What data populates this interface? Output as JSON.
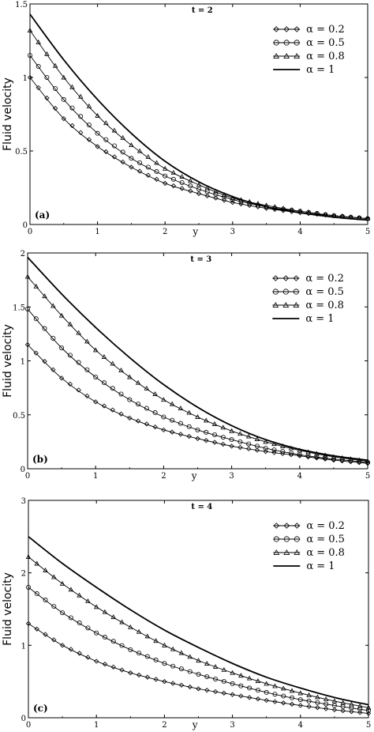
{
  "chart_data": [
    {
      "type": "line",
      "title": "t = 2",
      "panel_label": "(a)",
      "xlabel": "y",
      "ylabel": "Fluid velocity",
      "xlim": [
        0,
        5
      ],
      "ylim": [
        0,
        1.5
      ],
      "xticks": [
        "0",
        "1",
        "2",
        "3",
        "4",
        "5"
      ],
      "yticks": [
        "0",
        "0.5",
        "1",
        "1.5"
      ],
      "grid": false,
      "legend": "top-right",
      "series": [
        {
          "name": "α = 0.2",
          "marker": "diamond",
          "x": [
            0,
            0.5,
            1,
            1.5,
            2,
            2.5,
            3,
            3.5,
            4,
            4.5,
            5
          ],
          "values": [
            1.0,
            0.72,
            0.53,
            0.39,
            0.28,
            0.21,
            0.15,
            0.11,
            0.08,
            0.06,
            0.04
          ]
        },
        {
          "name": "α = 0.5",
          "marker": "circle",
          "x": [
            0,
            0.5,
            1,
            1.5,
            2,
            2.5,
            3,
            3.5,
            4,
            4.5,
            5
          ],
          "values": [
            1.15,
            0.85,
            0.62,
            0.45,
            0.33,
            0.24,
            0.17,
            0.12,
            0.09,
            0.06,
            0.04
          ]
        },
        {
          "name": "α = 0.8",
          "marker": "triangle",
          "x": [
            0,
            0.5,
            1,
            1.5,
            2,
            2.5,
            3,
            3.5,
            4,
            4.5,
            5
          ],
          "values": [
            1.32,
            1.0,
            0.74,
            0.54,
            0.38,
            0.27,
            0.18,
            0.13,
            0.09,
            0.06,
            0.04
          ]
        },
        {
          "name": "α = 1",
          "marker": "none",
          "x": [
            0,
            0.5,
            1,
            1.5,
            2,
            2.5,
            3,
            3.5,
            4,
            4.5,
            5
          ],
          "values": [
            1.43,
            1.12,
            0.85,
            0.62,
            0.43,
            0.29,
            0.19,
            0.12,
            0.08,
            0.05,
            0.03
          ]
        }
      ]
    },
    {
      "type": "line",
      "title": "t = 3",
      "panel_label": "(b)",
      "xlabel": "y",
      "ylabel": "Fluid velocity",
      "xlim": [
        0,
        5
      ],
      "ylim": [
        0,
        2
      ],
      "xticks": [
        "0",
        "1",
        "2",
        "3",
        "4",
        "5"
      ],
      "yticks": [
        "0",
        "0.5",
        "1",
        "1.5",
        "2"
      ],
      "grid": false,
      "legend": "top-right",
      "series": [
        {
          "name": "α = 0.2",
          "marker": "diamond",
          "x": [
            0,
            0.5,
            1,
            1.5,
            2,
            2.5,
            3,
            3.5,
            4,
            4.5,
            5
          ],
          "values": [
            1.15,
            0.84,
            0.62,
            0.47,
            0.36,
            0.28,
            0.21,
            0.16,
            0.12,
            0.08,
            0.05
          ]
        },
        {
          "name": "α = 0.5",
          "marker": "circle",
          "x": [
            0,
            0.5,
            1,
            1.5,
            2,
            2.5,
            3,
            3.5,
            4,
            4.5,
            5
          ],
          "values": [
            1.48,
            1.12,
            0.85,
            0.64,
            0.48,
            0.36,
            0.27,
            0.19,
            0.13,
            0.09,
            0.06
          ]
        },
        {
          "name": "α = 0.8",
          "marker": "triangle",
          "x": [
            0,
            0.5,
            1,
            1.5,
            2,
            2.5,
            3,
            3.5,
            4,
            4.5,
            5
          ],
          "values": [
            1.78,
            1.42,
            1.1,
            0.85,
            0.64,
            0.48,
            0.35,
            0.25,
            0.17,
            0.11,
            0.07
          ]
        },
        {
          "name": "α = 1",
          "marker": "none",
          "x": [
            0,
            0.5,
            1,
            1.5,
            2,
            2.5,
            3,
            3.5,
            4,
            4.5,
            5
          ],
          "values": [
            1.96,
            1.62,
            1.31,
            1.03,
            0.78,
            0.57,
            0.4,
            0.27,
            0.18,
            0.12,
            0.08
          ]
        }
      ]
    },
    {
      "type": "line",
      "title": "t = 4",
      "panel_label": "(c)",
      "xlabel": "y",
      "ylabel": "Fluid velocity",
      "xlim": [
        0,
        5
      ],
      "ylim": [
        0,
        3
      ],
      "xticks": [
        "0",
        "1",
        "2",
        "3",
        "4",
        "5"
      ],
      "yticks": [
        "0",
        "1",
        "2",
        "3"
      ],
      "grid": false,
      "legend": "top-right",
      "series": [
        {
          "name": "α = 0.2",
          "marker": "diamond",
          "x": [
            0,
            0.5,
            1,
            1.5,
            2,
            2.5,
            3,
            3.5,
            4,
            4.5,
            5
          ],
          "values": [
            1.3,
            1.0,
            0.78,
            0.62,
            0.5,
            0.4,
            0.32,
            0.24,
            0.17,
            0.11,
            0.06
          ]
        },
        {
          "name": "α = 0.5",
          "marker": "circle",
          "x": [
            0,
            0.5,
            1,
            1.5,
            2,
            2.5,
            3,
            3.5,
            4,
            4.5,
            5
          ],
          "values": [
            1.8,
            1.45,
            1.17,
            0.94,
            0.75,
            0.6,
            0.47,
            0.35,
            0.25,
            0.17,
            0.1
          ]
        },
        {
          "name": "α = 0.8",
          "marker": "triangle",
          "x": [
            0,
            0.5,
            1,
            1.5,
            2,
            2.5,
            3,
            3.5,
            4,
            4.5,
            5
          ],
          "values": [
            2.22,
            1.85,
            1.53,
            1.25,
            1.0,
            0.79,
            0.62,
            0.47,
            0.34,
            0.23,
            0.14
          ]
        },
        {
          "name": "α = 1",
          "marker": "none",
          "x": [
            0,
            0.5,
            1,
            1.5,
            2,
            2.5,
            3,
            3.5,
            4,
            4.5,
            5
          ],
          "values": [
            2.5,
            2.13,
            1.8,
            1.49,
            1.21,
            0.97,
            0.75,
            0.56,
            0.41,
            0.28,
            0.18
          ]
        }
      ]
    }
  ]
}
